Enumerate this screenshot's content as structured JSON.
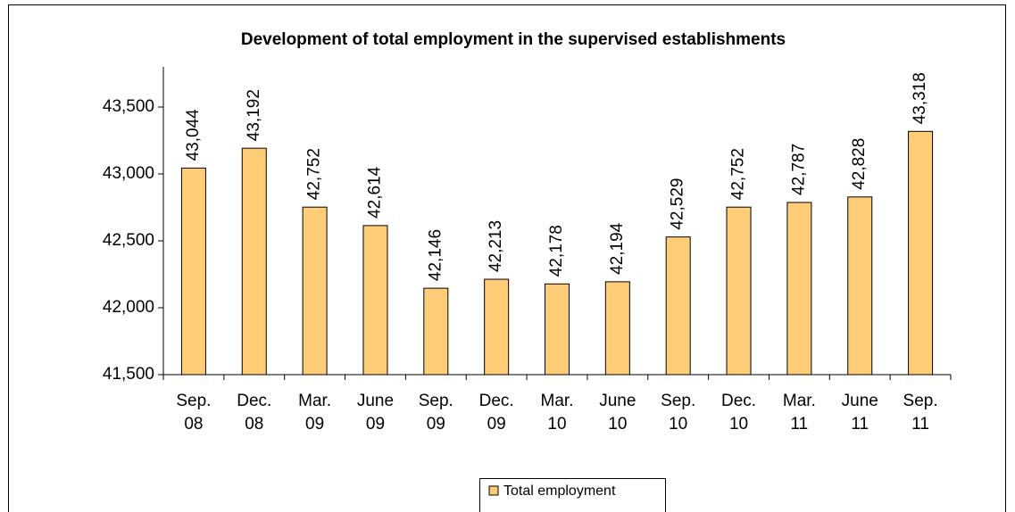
{
  "chart_data": {
    "type": "bar",
    "title": "Development of total employment in the supervised establishments",
    "categories": [
      "Sep. 08",
      "Dec. 08",
      "Mar. 09",
      "June 09",
      "Sep. 09",
      "Dec. 09",
      "Mar. 10",
      "June 10",
      "Sep. 10",
      "Dec. 10",
      "Mar. 11",
      "June 11",
      "Sep. 11"
    ],
    "series": [
      {
        "name": "Total employment",
        "color": "#ffcc77",
        "values": [
          43044,
          43192,
          42752,
          42614,
          42146,
          42213,
          42178,
          42194,
          42529,
          42752,
          42787,
          42828,
          43318
        ],
        "value_labels": [
          "43,044",
          "43,192",
          "42,752",
          "42,614",
          "42,146",
          "42,213",
          "42,178",
          "42,194",
          "42,529",
          "42,752",
          "42,787",
          "42,828",
          "43,318"
        ]
      }
    ],
    "ylim": [
      41500,
      43800
    ],
    "yticks": [
      {
        "value": 41500,
        "label": "41,500"
      },
      {
        "value": 42000,
        "label": "42,000"
      },
      {
        "value": 42500,
        "label": "42,500"
      },
      {
        "value": 43000,
        "label": "43,000"
      },
      {
        "value": 43500,
        "label": "43,500"
      }
    ],
    "grid": false,
    "legend": "bottom"
  }
}
